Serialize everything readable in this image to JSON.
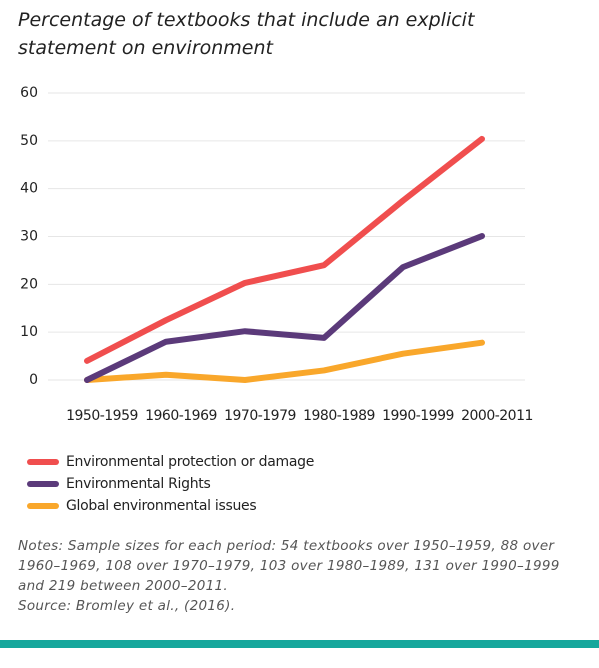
{
  "chart_data": {
    "type": "line",
    "title": "Percentage of textbooks that include an explicit statement on environment",
    "categories": [
      "1950-1959",
      "1960-1969",
      "1970-1979",
      "1980-1989",
      "1990-1999",
      "2000-2011"
    ],
    "series": [
      {
        "name": "Environmental protection or damage",
        "color": "#f04e4e",
        "values": [
          4,
          12.5,
          20.3,
          24,
          37.5,
          50.4
        ]
      },
      {
        "name": "Environmental Rights",
        "color": "#5b3a7a",
        "values": [
          0,
          8,
          10.2,
          8.8,
          23.6,
          30.1
        ]
      },
      {
        "name": "Global environmental issues",
        "color": "#f9a72b",
        "values": [
          0,
          1.1,
          0,
          2,
          5.5,
          7.8
        ]
      }
    ],
    "ylim": [
      0,
      60
    ],
    "yticks": [
      0,
      10,
      20,
      30,
      40,
      50,
      60
    ],
    "grid": true,
    "notes": "Notes: Sample sizes for each period: 54 textbooks over 1950–1959, 88 over 1960–1969, 108 over 1970–1979, 103 over 1980–1989, 131 over 1990–1999 and 219 between 2000–2011.",
    "source": "Source: Bromley et al., (2016)."
  }
}
